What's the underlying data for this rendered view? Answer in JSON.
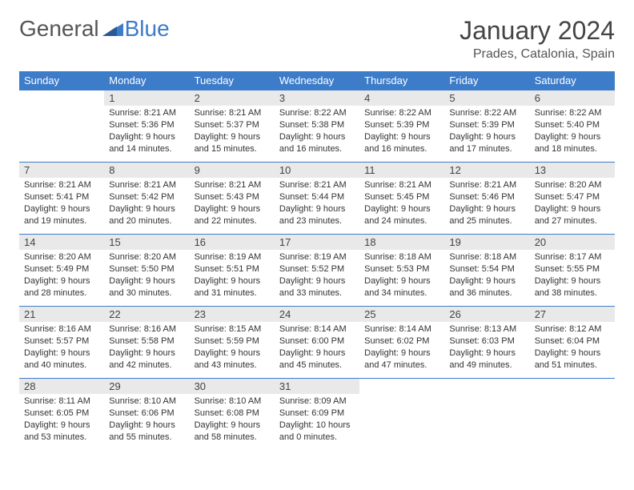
{
  "logo": {
    "general": "General",
    "blue": "Blue"
  },
  "title": "January 2024",
  "location": "Prades, Catalonia, Spain",
  "weekdays": [
    "Sunday",
    "Monday",
    "Tuesday",
    "Wednesday",
    "Thursday",
    "Friday",
    "Saturday"
  ],
  "colors": {
    "header_bg": "#3d7cc9",
    "header_text": "#ffffff",
    "daynum_bg": "#e9e9e9",
    "border": "#3d7cc9",
    "text": "#333333",
    "logo_gray": "#555555",
    "logo_blue": "#3d7cc9"
  },
  "layout": {
    "start_offset": 1,
    "rows": 5,
    "cols": 7
  },
  "days": [
    {
      "n": "1",
      "sunrise": "Sunrise: 8:21 AM",
      "sunset": "Sunset: 5:36 PM",
      "day1": "Daylight: 9 hours",
      "day2": "and 14 minutes."
    },
    {
      "n": "2",
      "sunrise": "Sunrise: 8:21 AM",
      "sunset": "Sunset: 5:37 PM",
      "day1": "Daylight: 9 hours",
      "day2": "and 15 minutes."
    },
    {
      "n": "3",
      "sunrise": "Sunrise: 8:22 AM",
      "sunset": "Sunset: 5:38 PM",
      "day1": "Daylight: 9 hours",
      "day2": "and 16 minutes."
    },
    {
      "n": "4",
      "sunrise": "Sunrise: 8:22 AM",
      "sunset": "Sunset: 5:39 PM",
      "day1": "Daylight: 9 hours",
      "day2": "and 16 minutes."
    },
    {
      "n": "5",
      "sunrise": "Sunrise: 8:22 AM",
      "sunset": "Sunset: 5:39 PM",
      "day1": "Daylight: 9 hours",
      "day2": "and 17 minutes."
    },
    {
      "n": "6",
      "sunrise": "Sunrise: 8:22 AM",
      "sunset": "Sunset: 5:40 PM",
      "day1": "Daylight: 9 hours",
      "day2": "and 18 minutes."
    },
    {
      "n": "7",
      "sunrise": "Sunrise: 8:21 AM",
      "sunset": "Sunset: 5:41 PM",
      "day1": "Daylight: 9 hours",
      "day2": "and 19 minutes."
    },
    {
      "n": "8",
      "sunrise": "Sunrise: 8:21 AM",
      "sunset": "Sunset: 5:42 PM",
      "day1": "Daylight: 9 hours",
      "day2": "and 20 minutes."
    },
    {
      "n": "9",
      "sunrise": "Sunrise: 8:21 AM",
      "sunset": "Sunset: 5:43 PM",
      "day1": "Daylight: 9 hours",
      "day2": "and 22 minutes."
    },
    {
      "n": "10",
      "sunrise": "Sunrise: 8:21 AM",
      "sunset": "Sunset: 5:44 PM",
      "day1": "Daylight: 9 hours",
      "day2": "and 23 minutes."
    },
    {
      "n": "11",
      "sunrise": "Sunrise: 8:21 AM",
      "sunset": "Sunset: 5:45 PM",
      "day1": "Daylight: 9 hours",
      "day2": "and 24 minutes."
    },
    {
      "n": "12",
      "sunrise": "Sunrise: 8:21 AM",
      "sunset": "Sunset: 5:46 PM",
      "day1": "Daylight: 9 hours",
      "day2": "and 25 minutes."
    },
    {
      "n": "13",
      "sunrise": "Sunrise: 8:20 AM",
      "sunset": "Sunset: 5:47 PM",
      "day1": "Daylight: 9 hours",
      "day2": "and 27 minutes."
    },
    {
      "n": "14",
      "sunrise": "Sunrise: 8:20 AM",
      "sunset": "Sunset: 5:49 PM",
      "day1": "Daylight: 9 hours",
      "day2": "and 28 minutes."
    },
    {
      "n": "15",
      "sunrise": "Sunrise: 8:20 AM",
      "sunset": "Sunset: 5:50 PM",
      "day1": "Daylight: 9 hours",
      "day2": "and 30 minutes."
    },
    {
      "n": "16",
      "sunrise": "Sunrise: 8:19 AM",
      "sunset": "Sunset: 5:51 PM",
      "day1": "Daylight: 9 hours",
      "day2": "and 31 minutes."
    },
    {
      "n": "17",
      "sunrise": "Sunrise: 8:19 AM",
      "sunset": "Sunset: 5:52 PM",
      "day1": "Daylight: 9 hours",
      "day2": "and 33 minutes."
    },
    {
      "n": "18",
      "sunrise": "Sunrise: 8:18 AM",
      "sunset": "Sunset: 5:53 PM",
      "day1": "Daylight: 9 hours",
      "day2": "and 34 minutes."
    },
    {
      "n": "19",
      "sunrise": "Sunrise: 8:18 AM",
      "sunset": "Sunset: 5:54 PM",
      "day1": "Daylight: 9 hours",
      "day2": "and 36 minutes."
    },
    {
      "n": "20",
      "sunrise": "Sunrise: 8:17 AM",
      "sunset": "Sunset: 5:55 PM",
      "day1": "Daylight: 9 hours",
      "day2": "and 38 minutes."
    },
    {
      "n": "21",
      "sunrise": "Sunrise: 8:16 AM",
      "sunset": "Sunset: 5:57 PM",
      "day1": "Daylight: 9 hours",
      "day2": "and 40 minutes."
    },
    {
      "n": "22",
      "sunrise": "Sunrise: 8:16 AM",
      "sunset": "Sunset: 5:58 PM",
      "day1": "Daylight: 9 hours",
      "day2": "and 42 minutes."
    },
    {
      "n": "23",
      "sunrise": "Sunrise: 8:15 AM",
      "sunset": "Sunset: 5:59 PM",
      "day1": "Daylight: 9 hours",
      "day2": "and 43 minutes."
    },
    {
      "n": "24",
      "sunrise": "Sunrise: 8:14 AM",
      "sunset": "Sunset: 6:00 PM",
      "day1": "Daylight: 9 hours",
      "day2": "and 45 minutes."
    },
    {
      "n": "25",
      "sunrise": "Sunrise: 8:14 AM",
      "sunset": "Sunset: 6:02 PM",
      "day1": "Daylight: 9 hours",
      "day2": "and 47 minutes."
    },
    {
      "n": "26",
      "sunrise": "Sunrise: 8:13 AM",
      "sunset": "Sunset: 6:03 PM",
      "day1": "Daylight: 9 hours",
      "day2": "and 49 minutes."
    },
    {
      "n": "27",
      "sunrise": "Sunrise: 8:12 AM",
      "sunset": "Sunset: 6:04 PM",
      "day1": "Daylight: 9 hours",
      "day2": "and 51 minutes."
    },
    {
      "n": "28",
      "sunrise": "Sunrise: 8:11 AM",
      "sunset": "Sunset: 6:05 PM",
      "day1": "Daylight: 9 hours",
      "day2": "and 53 minutes."
    },
    {
      "n": "29",
      "sunrise": "Sunrise: 8:10 AM",
      "sunset": "Sunset: 6:06 PM",
      "day1": "Daylight: 9 hours",
      "day2": "and 55 minutes."
    },
    {
      "n": "30",
      "sunrise": "Sunrise: 8:10 AM",
      "sunset": "Sunset: 6:08 PM",
      "day1": "Daylight: 9 hours",
      "day2": "and 58 minutes."
    },
    {
      "n": "31",
      "sunrise": "Sunrise: 8:09 AM",
      "sunset": "Sunset: 6:09 PM",
      "day1": "Daylight: 10 hours",
      "day2": "and 0 minutes."
    }
  ]
}
